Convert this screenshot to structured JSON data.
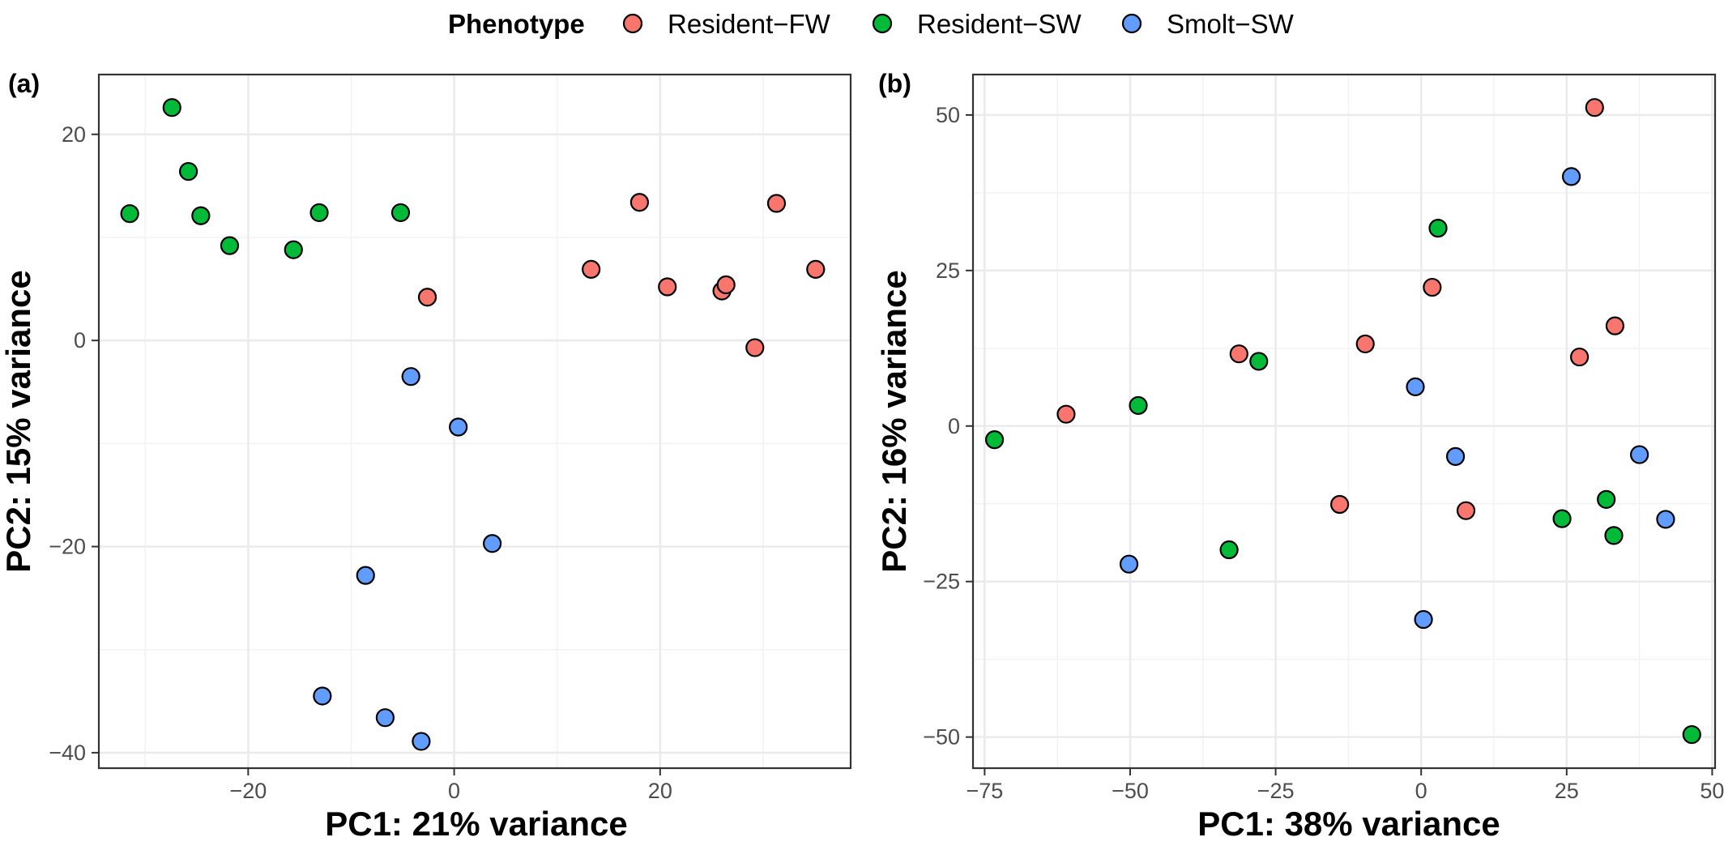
{
  "legend": {
    "title": "Phenotype",
    "items": [
      {
        "label": "Resident−FW",
        "color": "#F8766D"
      },
      {
        "label": "Resident−SW",
        "color": "#00BA38"
      },
      {
        "label": "Smolt−SW",
        "color": "#619CFF"
      }
    ],
    "position": "top"
  },
  "chart_data": [
    {
      "type": "scatter",
      "panel_label": "(a)",
      "xlabel": "PC1: 21% variance",
      "ylabel": "PC2: 15% variance",
      "xlim": [
        -34.5,
        38.5
      ],
      "ylim": [
        -41.5,
        25.8
      ],
      "xticks": [
        -20,
        0,
        20
      ],
      "yticks": [
        -40,
        -20,
        0,
        20
      ],
      "xtick_labels": [
        "−20",
        "0",
        "20"
      ],
      "ytick_labels": [
        "−40",
        "−20",
        "0",
        "20"
      ],
      "grid": true,
      "series": [
        {
          "name": "Resident−FW",
          "color": "#F8766D",
          "x": [
            -2.6,
            13.3,
            18.0,
            20.7,
            26.0,
            26.4,
            29.2,
            31.3,
            35.1
          ],
          "y": [
            4.2,
            6.9,
            13.4,
            5.2,
            4.8,
            5.4,
            -0.7,
            13.3,
            6.9
          ]
        },
        {
          "name": "Resident−SW",
          "color": "#00BA38",
          "x": [
            -31.5,
            -27.4,
            -25.8,
            -24.6,
            -21.8,
            -15.6,
            -13.1,
            -5.2
          ],
          "y": [
            12.3,
            22.6,
            16.4,
            12.1,
            9.2,
            8.8,
            12.4,
            12.4
          ]
        },
        {
          "name": "Smolt−SW",
          "color": "#619CFF",
          "x": [
            -4.2,
            0.4,
            3.7,
            -8.6,
            -12.8,
            -6.7,
            -3.2
          ],
          "y": [
            -3.5,
            -8.4,
            -19.7,
            -22.8,
            -34.5,
            -36.6,
            -38.9
          ]
        }
      ]
    },
    {
      "type": "scatter",
      "panel_label": "(b)",
      "xlabel": "PC1: 38% variance",
      "ylabel": "PC2: 16% variance",
      "xlim": [
        -77.0,
        50.5
      ],
      "ylim": [
        -55.0,
        56.5
      ],
      "xticks": [
        -75,
        -50,
        -25,
        0,
        25,
        50
      ],
      "yticks": [
        -50,
        -25,
        0,
        25,
        50
      ],
      "xtick_labels": [
        "−75",
        "−50",
        "−25",
        "0",
        "25",
        "50"
      ],
      "ytick_labels": [
        "−50",
        "−25",
        "0",
        "25",
        "50"
      ],
      "grid": true,
      "series": [
        {
          "name": "Resident−FW",
          "color": "#F8766D",
          "x": [
            -61.0,
            -31.3,
            -9.6,
            1.9,
            -14.0,
            7.7,
            29.8,
            27.2,
            33.3
          ],
          "y": [
            1.9,
            11.6,
            13.2,
            22.3,
            -12.6,
            -13.6,
            51.2,
            11.1,
            16.1
          ]
        },
        {
          "name": "Resident−SW",
          "color": "#00BA38",
          "x": [
            -73.3,
            -48.6,
            -27.9,
            2.9,
            -33.0,
            24.2,
            31.8,
            33.1,
            46.5
          ],
          "y": [
            -2.2,
            3.3,
            10.4,
            31.8,
            -19.9,
            -14.9,
            -11.8,
            -17.6,
            -49.6
          ]
        },
        {
          "name": "Smolt−SW",
          "color": "#619CFF",
          "x": [
            25.8,
            -1.0,
            5.9,
            37.5,
            42.0,
            -50.2,
            0.4
          ],
          "y": [
            40.1,
            6.3,
            -4.9,
            -4.6,
            -15.0,
            -22.2,
            -31.1
          ]
        }
      ]
    }
  ]
}
